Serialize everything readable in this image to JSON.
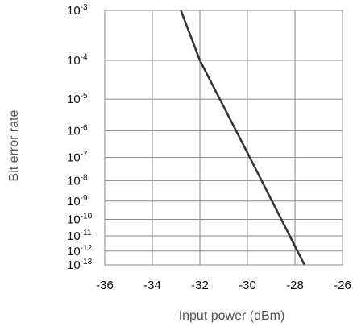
{
  "chart_data": {
    "type": "line",
    "xlabel": "Input power  (dBm)",
    "ylabel": "Bit error rate",
    "xlim": [
      -36,
      -26
    ],
    "x_ticks": [
      "-36",
      "-34",
      "-32",
      "-30",
      "-28",
      "-26"
    ],
    "y_ticks": [
      {
        "base": "10",
        "exp": "-3"
      },
      {
        "base": "10",
        "exp": "-4"
      },
      {
        "base": "10",
        "exp": "-5"
      },
      {
        "base": "10",
        "exp": "-6"
      },
      {
        "base": "10",
        "exp": "-7"
      },
      {
        "base": "10",
        "exp": "-8"
      },
      {
        "base": "10",
        "exp": "-9"
      },
      {
        "base": "10",
        "exp": "-10"
      },
      {
        "base": "10",
        "exp": "-11"
      },
      {
        "base": "10",
        "exp": "-12"
      },
      {
        "base": "10",
        "exp": "-13"
      }
    ],
    "y_scale": "-log(-log10(BER))",
    "ylim": [
      1e-13,
      0.001
    ],
    "grid": true,
    "series": [
      {
        "color": "#333333",
        "points": [
          {
            "x": -32.8,
            "y": 0.001
          },
          {
            "x": -32.0,
            "y": 0.0001
          },
          {
            "x": -29.9,
            "y": 1e-07
          },
          {
            "x": -27.6,
            "y": 1e-13
          }
        ]
      }
    ]
  }
}
